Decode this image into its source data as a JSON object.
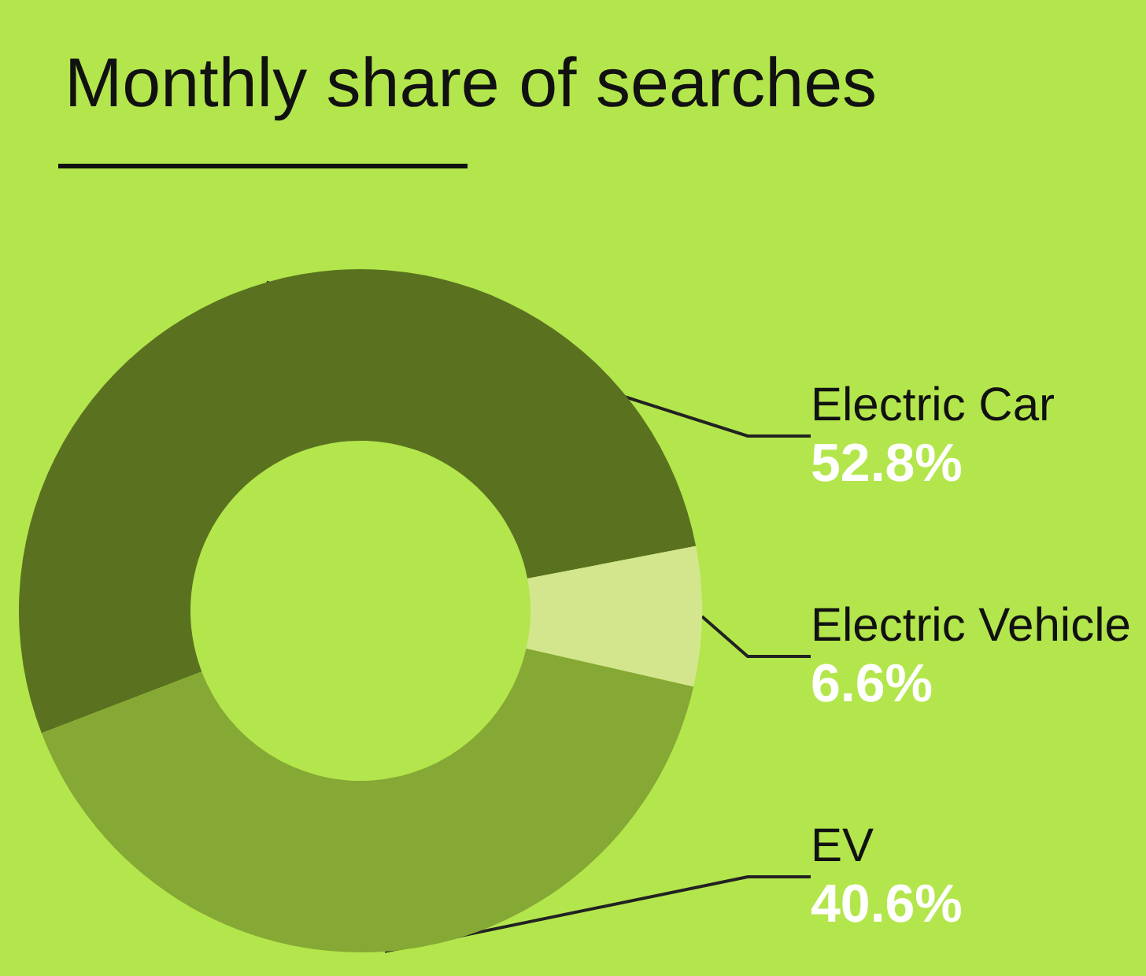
{
  "chart_data": {
    "type": "donut",
    "title": "Monthly share of searches",
    "categories": [
      "Electric Car",
      "Electric Vehicle",
      "EV"
    ],
    "values": [
      52.8,
      6.6,
      40.6
    ],
    "colors": [
      "#5a7220",
      "#d3e68e",
      "#86a834"
    ],
    "value_labels": [
      "52.8%",
      "6.6%",
      "40.6%"
    ],
    "legend": false
  }
}
